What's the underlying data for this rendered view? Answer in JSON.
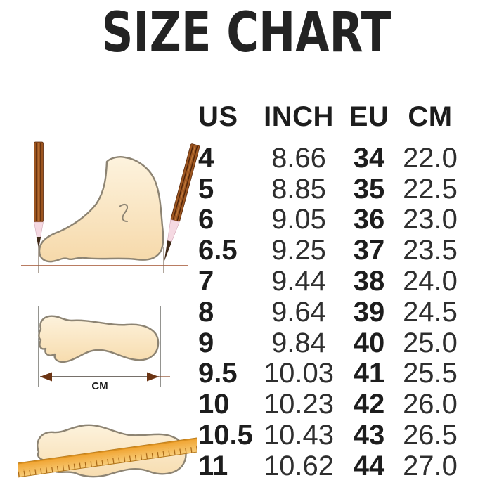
{
  "title": "SIZE CHART",
  "chart_data": {
    "type": "table",
    "title": "SIZE CHART",
    "columns": [
      "US",
      "INCH",
      "EU",
      "CM"
    ],
    "rows": [
      [
        "4",
        "8.66",
        "34",
        "22.0"
      ],
      [
        "5",
        "8.85",
        "35",
        "22.5"
      ],
      [
        "6",
        "9.05",
        "36",
        "23.0"
      ],
      [
        "6.5",
        "9.25",
        "37",
        "23.5"
      ],
      [
        "7",
        "9.44",
        "38",
        "24.0"
      ],
      [
        "8",
        "9.64",
        "39",
        "24.5"
      ],
      [
        "9",
        "9.84",
        "40",
        "25.0"
      ],
      [
        "9.5",
        "10.03",
        "41",
        "25.5"
      ],
      [
        "10",
        "10.23",
        "42",
        "26.0"
      ],
      [
        "10.5",
        "10.43",
        "43",
        "26.5"
      ],
      [
        "11",
        "10.62",
        "44",
        "27.0"
      ]
    ],
    "layout": "table right of three foot-measurement illustrations; US and EU columns bold, INCH and CM regular weight"
  },
  "illustrations": {
    "length_unit_label": "CM"
  },
  "colors": {
    "text": "#232323",
    "foot_fill_light": "#fdf2dc",
    "foot_fill_dark": "#f7dcae",
    "foot_outline": "#8d8473",
    "pencil_body": "#9c5520",
    "pencil_stripe": "#4f2409",
    "pencil_wood": "#f5d9e2",
    "pencil_lead": "#3f2a18",
    "measure_line": "#a2512e",
    "arrow_head": "#6b3413",
    "ruler_orange": "#f0a22e",
    "ruler_light": "#f8cd7a",
    "ruler_tick": "#a56312"
  }
}
